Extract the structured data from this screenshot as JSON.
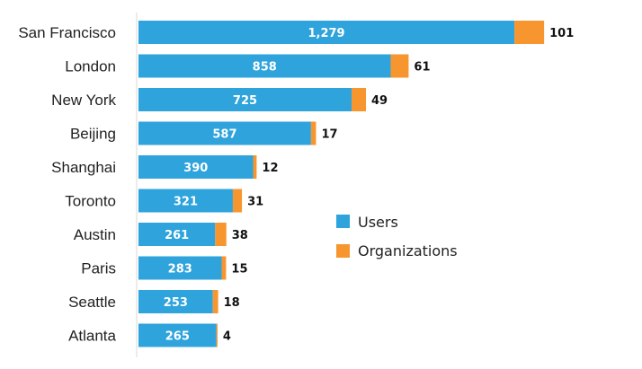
{
  "chart_data": {
    "type": "bar",
    "orientation": "horizontal",
    "stacked": true,
    "categories": [
      "San Francisco",
      "London",
      "New York",
      "Beijing",
      "Shanghai",
      "Toronto",
      "Austin",
      "Paris",
      "Seattle",
      "Atlanta"
    ],
    "series": [
      {
        "name": "Users",
        "color": "#2ea3dc",
        "values": [
          1279,
          858,
          725,
          587,
          390,
          321,
          261,
          283,
          253,
          265
        ],
        "value_labels": [
          "1,279",
          "858",
          "725",
          "587",
          "390",
          "321",
          "261",
          "283",
          "253",
          "265"
        ]
      },
      {
        "name": "Organizations",
        "color": "#f7962f",
        "values": [
          101,
          61,
          49,
          17,
          12,
          31,
          38,
          15,
          18,
          4
        ],
        "value_labels": [
          "101",
          "61",
          "49",
          "17",
          "12",
          "31",
          "38",
          "15",
          "18",
          "4"
        ]
      }
    ],
    "title": "",
    "xlabel": "",
    "ylabel": "",
    "xlim": [
      0,
      1380
    ],
    "grid": false,
    "legend": "center-right"
  }
}
